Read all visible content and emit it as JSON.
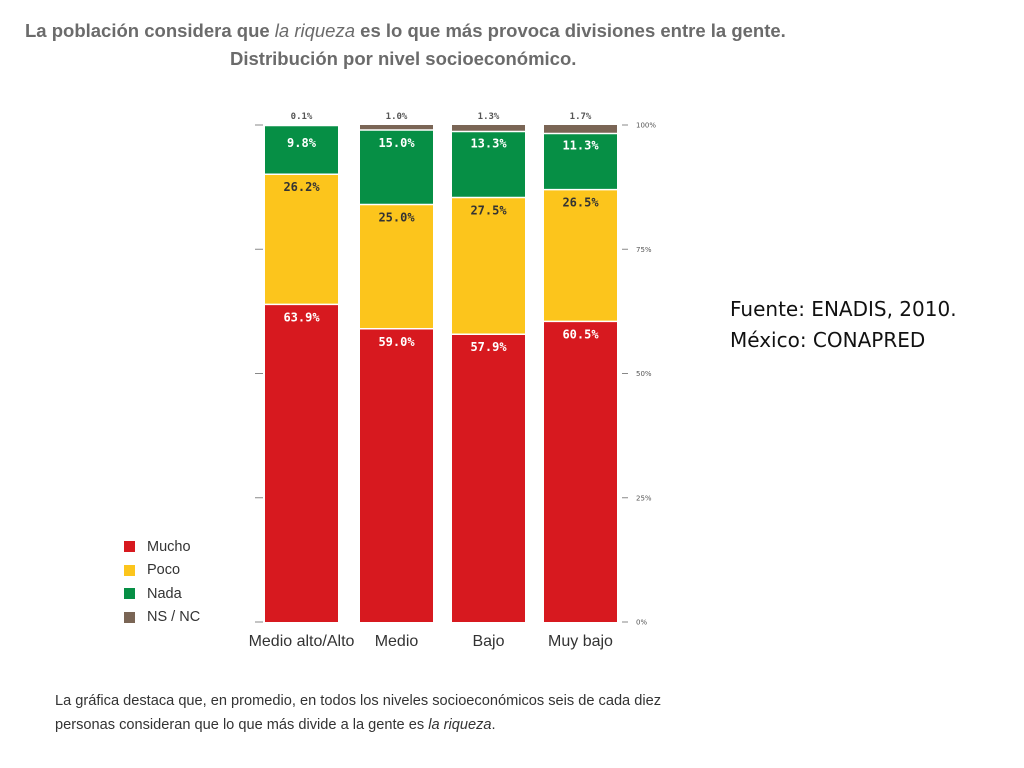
{
  "title": {
    "line1_prefix": "La población considera que ",
    "line1_italic": "la riqueza",
    "line1_suffix": " es lo que más provoca divisiones entre la gente.",
    "line2": "Distribución por nivel socioeconómico."
  },
  "source": {
    "line1": "Fuente: ENADIS, 2010.",
    "line2": "México: CONAPRED"
  },
  "footnote": {
    "line1": "La gráfica destaca que, en promedio, en todos los niveles socioeconómicos seis de cada diez",
    "line2_prefix": "personas consideran que lo que más divide a la gente es ",
    "line2_italic": "la riqueza",
    "line2_suffix": "."
  },
  "legend": [
    {
      "label": "Mucho",
      "color": "#d7191f"
    },
    {
      "label": "Poco",
      "color": "#fcc51c"
    },
    {
      "label": "Nada",
      "color": "#068f45"
    },
    {
      "label": "NS / NC",
      "color": "#7a6555"
    }
  ],
  "chart_data": {
    "type": "bar",
    "stacked": true,
    "categories": [
      "Medio alto/Alto",
      "Medio",
      "Bajo",
      "Muy bajo"
    ],
    "series": [
      {
        "name": "Mucho",
        "color": "#d7191f",
        "values": [
          63.9,
          59.0,
          57.9,
          60.5
        ],
        "labels": [
          "63.9%",
          "59.0%",
          "57.9%",
          "60.5%"
        ],
        "label_color": "#ffffff"
      },
      {
        "name": "Poco",
        "color": "#fcc51c",
        "values": [
          26.2,
          25.0,
          27.5,
          26.5
        ],
        "labels": [
          "26.2%",
          "25.0%",
          "27.5%",
          "26.5%"
        ],
        "label_color": "#333333"
      },
      {
        "name": "Nada",
        "color": "#068f45",
        "values": [
          9.8,
          15.0,
          13.3,
          11.3
        ],
        "labels": [
          "9.8%",
          "15.0%",
          "13.3%",
          "11.3%"
        ],
        "label_color": "#ffffff"
      },
      {
        "name": "NS / NC",
        "color": "#7a6555",
        "values": [
          0.1,
          1.0,
          1.3,
          1.7
        ],
        "labels": [
          "0.1%",
          "1.0%",
          "1.3%",
          "1.7%"
        ],
        "label_color": "#555555"
      }
    ],
    "yticks": [
      "0%",
      "25%",
      "50%",
      "75%",
      "100%"
    ],
    "ylim": [
      0,
      100
    ],
    "legend_position": "bottom-left",
    "grid": false
  }
}
